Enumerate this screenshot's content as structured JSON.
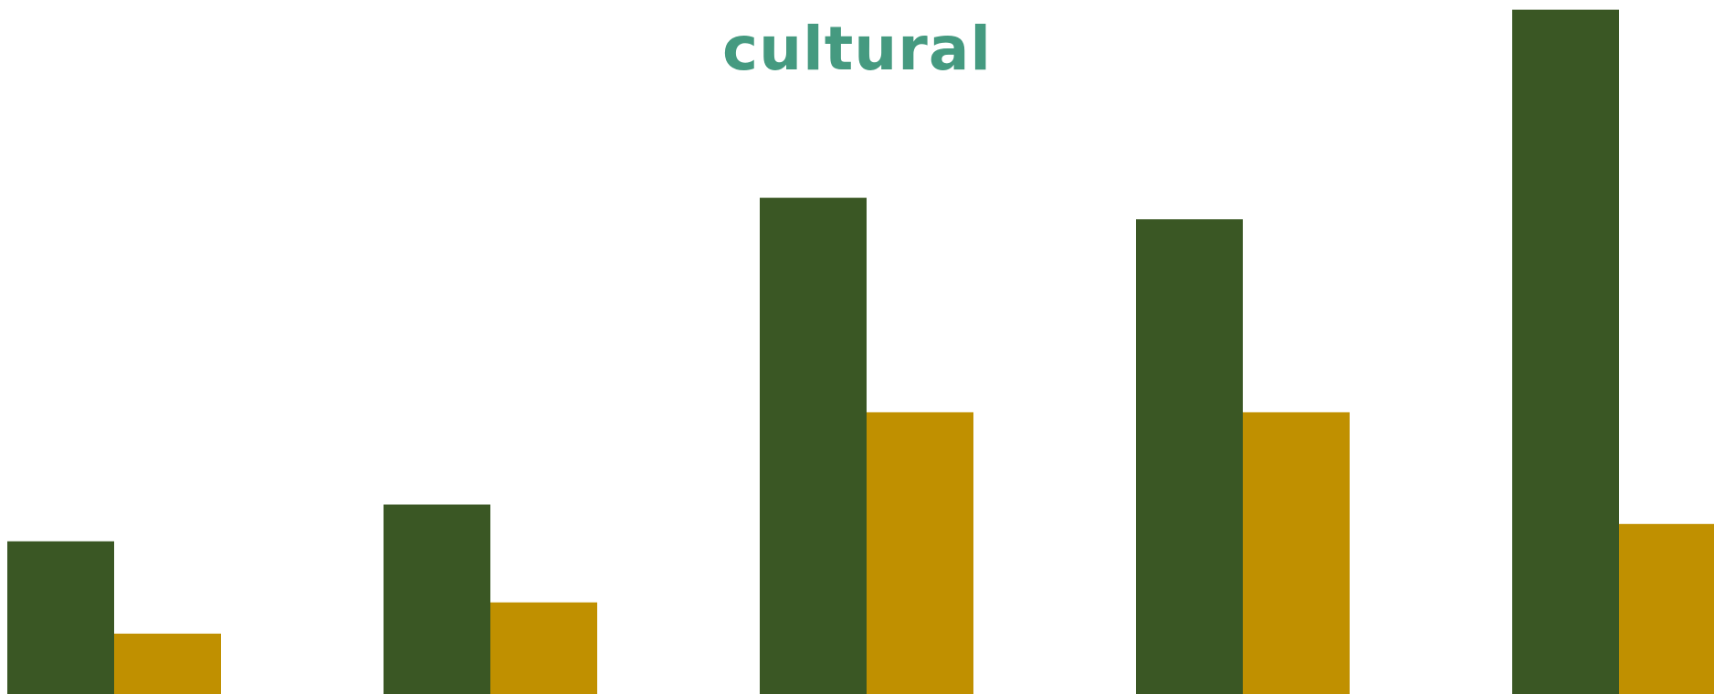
{
  "chart_data": {
    "type": "bar",
    "title": "cultural",
    "xlabel": "",
    "ylabel": "",
    "categories": [
      "",
      "",
      "",
      "",
      ""
    ],
    "ylim": [
      0,
      100
    ],
    "grid": false,
    "legend": "none",
    "series": [
      {
        "values": [
          22,
          27.3,
          71.5,
          68.4,
          98.6
        ],
        "color": "#3a5724"
      },
      {
        "values": [
          8.7,
          13.2,
          40.6,
          40.6,
          24.5
        ],
        "color": "#c09000"
      }
    ]
  },
  "colors": {
    "title": "#459a80",
    "background": "#ffffff"
  }
}
